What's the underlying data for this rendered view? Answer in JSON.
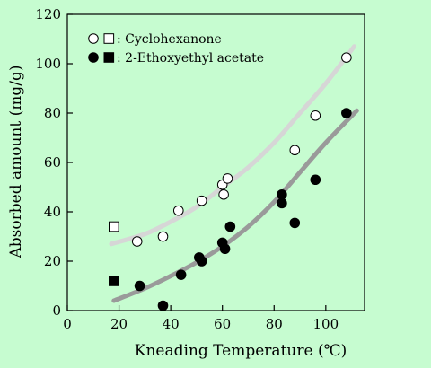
{
  "chart_data": {
    "type": "scatter",
    "title": "",
    "xlabel": "Kneading Temperature (℃)",
    "ylabel": "Absorbed amount (mg/g)",
    "xlim": [
      0,
      115
    ],
    "ylim": [
      0,
      120
    ],
    "xticks": [
      0,
      20,
      40,
      60,
      80,
      100
    ],
    "yticks": [
      0,
      20,
      40,
      60,
      80,
      100,
      120
    ],
    "legend_position": "top-left",
    "series": [
      {
        "name": "Cyclohexanone",
        "legend_label": ": Cyclohexanone",
        "marker": "open",
        "circles": [
          [
            27,
            28
          ],
          [
            37,
            30
          ],
          [
            43,
            40.5
          ],
          [
            52,
            44.5
          ],
          [
            60,
            51
          ],
          [
            60.5,
            47
          ],
          [
            62,
            53.5
          ],
          [
            88,
            65
          ],
          [
            96,
            79
          ],
          [
            108,
            102.5
          ]
        ],
        "squares": [
          [
            18,
            34
          ]
        ],
        "trend_color": "#d6d6d6",
        "trend": [
          [
            17,
            27
          ],
          [
            30,
            31
          ],
          [
            40,
            36
          ],
          [
            50,
            42
          ],
          [
            60,
            50
          ],
          [
            70,
            58
          ],
          [
            80,
            68
          ],
          [
            90,
            80
          ],
          [
            100,
            92
          ],
          [
            111,
            107
          ]
        ]
      },
      {
        "name": "2-Ethoxyethyl acetate",
        "legend_label": ": 2-Ethoxyethyl acetate",
        "marker": "filled",
        "circles": [
          [
            28,
            10
          ],
          [
            37,
            2
          ],
          [
            44,
            14.5
          ],
          [
            51,
            21.5
          ],
          [
            52,
            20
          ],
          [
            60,
            27.5
          ],
          [
            61,
            25
          ],
          [
            63,
            34
          ],
          [
            83,
            47
          ],
          [
            83,
            43.5
          ],
          [
            88,
            35.5
          ],
          [
            96,
            53
          ],
          [
            108,
            80
          ]
        ],
        "squares": [
          [
            18,
            12
          ]
        ],
        "trend_color": "#9a9a9a",
        "trend": [
          [
            18,
            4
          ],
          [
            30,
            9
          ],
          [
            40,
            14
          ],
          [
            50,
            19.5
          ],
          [
            60,
            26
          ],
          [
            70,
            34
          ],
          [
            80,
            44
          ],
          [
            90,
            56
          ],
          [
            100,
            68
          ],
          [
            112,
            81
          ]
        ]
      }
    ]
  }
}
